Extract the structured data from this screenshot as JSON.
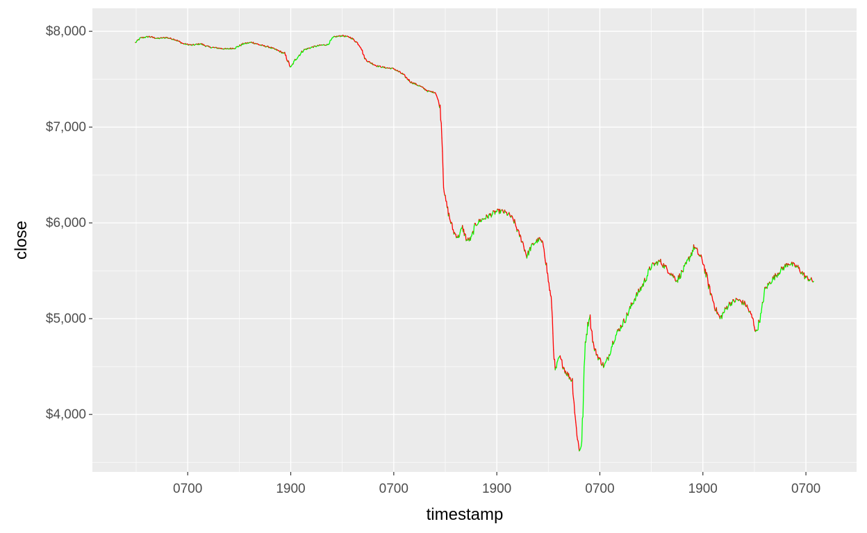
{
  "chart_data": {
    "type": "line",
    "title": "",
    "xlabel": "timestamp",
    "ylabel": "close",
    "x_tick_labels": [
      "0700",
      "1900",
      "0700",
      "1900",
      "0700",
      "1900",
      "0700"
    ],
    "y_tick_labels": [
      "$4,000",
      "$5,000",
      "$6,000",
      "$7,000",
      "$8,000"
    ],
    "y_ticks": [
      4000,
      5000,
      6000,
      7000,
      8000
    ],
    "ylim": [
      3400,
      8240
    ],
    "x_unit": "hours",
    "x_ticks_hours": [
      7,
      19,
      31,
      43,
      55,
      67,
      79
    ],
    "xlim_hours": [
      -4.1,
      84.9
    ],
    "x_range_hours": [
      0.9,
      79.9
    ],
    "grid": true,
    "legend": "none",
    "colors": {
      "up": "#00ff00",
      "down": "#ff0000",
      "panel": "#ebebeb",
      "grid": "#ffffff"
    },
    "series": [
      {
        "values": [
          [
            0.9,
            7880
          ],
          [
            1.5,
            7930
          ],
          [
            2.5,
            7945
          ],
          [
            3.5,
            7925
          ],
          [
            4.5,
            7935
          ],
          [
            5.5,
            7915
          ],
          [
            6.5,
            7870
          ],
          [
            7.5,
            7855
          ],
          [
            8.5,
            7870
          ],
          [
            9.5,
            7835
          ],
          [
            10.5,
            7825
          ],
          [
            11.5,
            7815
          ],
          [
            12.5,
            7825
          ],
          [
            13.5,
            7870
          ],
          [
            14.5,
            7885
          ],
          [
            15.5,
            7855
          ],
          [
            16.5,
            7835
          ],
          [
            17.5,
            7800
          ],
          [
            18.3,
            7765
          ],
          [
            19.0,
            7620
          ],
          [
            19.5,
            7700
          ],
          [
            20.5,
            7805
          ],
          [
            21.5,
            7835
          ],
          [
            22.5,
            7855
          ],
          [
            23.3,
            7860
          ],
          [
            24.0,
            7940
          ],
          [
            25.0,
            7955
          ],
          [
            26.0,
            7935
          ],
          [
            26.7,
            7885
          ],
          [
            27.2,
            7830
          ],
          [
            27.6,
            7720
          ],
          [
            28.0,
            7685
          ],
          [
            29.0,
            7640
          ],
          [
            30.0,
            7620
          ],
          [
            31.0,
            7610
          ],
          [
            32.0,
            7555
          ],
          [
            33.0,
            7470
          ],
          [
            34.0,
            7430
          ],
          [
            35.0,
            7375
          ],
          [
            35.9,
            7360
          ],
          [
            36.4,
            7200
          ],
          [
            36.6,
            6950
          ],
          [
            36.8,
            6400
          ],
          [
            37.0,
            6250
          ],
          [
            37.5,
            6050
          ],
          [
            38.0,
            5900
          ],
          [
            38.5,
            5850
          ],
          [
            39.0,
            5950
          ],
          [
            39.5,
            5820
          ],
          [
            40.0,
            5830
          ],
          [
            40.5,
            5980
          ],
          [
            41.0,
            6020
          ],
          [
            42.0,
            6070
          ],
          [
            43.0,
            6120
          ],
          [
            43.7,
            6120
          ],
          [
            44.5,
            6080
          ],
          [
            45.0,
            6020
          ],
          [
            45.5,
            5900
          ],
          [
            46.0,
            5800
          ],
          [
            46.5,
            5650
          ],
          [
            47.0,
            5750
          ],
          [
            47.5,
            5800
          ],
          [
            48.0,
            5830
          ],
          [
            48.5,
            5750
          ],
          [
            49.0,
            5400
          ],
          [
            49.4,
            5150
          ],
          [
            49.6,
            4700
          ],
          [
            49.8,
            4450
          ],
          [
            50.3,
            4600
          ],
          [
            51.0,
            4450
          ],
          [
            51.8,
            4350
          ],
          [
            52.2,
            3900
          ],
          [
            52.6,
            3620
          ],
          [
            52.9,
            3700
          ],
          [
            53.3,
            4750
          ],
          [
            53.8,
            5050
          ],
          [
            54.3,
            4700
          ],
          [
            54.8,
            4600
          ],
          [
            55.5,
            4500
          ],
          [
            56.0,
            4600
          ],
          [
            56.5,
            4750
          ],
          [
            57.0,
            4850
          ],
          [
            58.0,
            5000
          ],
          [
            59.0,
            5200
          ],
          [
            60.0,
            5350
          ],
          [
            61.0,
            5550
          ],
          [
            62.0,
            5600
          ],
          [
            63.0,
            5500
          ],
          [
            64.0,
            5400
          ],
          [
            65.0,
            5550
          ],
          [
            66.0,
            5750
          ],
          [
            67.0,
            5600
          ],
          [
            67.8,
            5300
          ],
          [
            68.5,
            5100
          ],
          [
            69.0,
            5000
          ],
          [
            70.0,
            5150
          ],
          [
            71.0,
            5200
          ],
          [
            72.0,
            5150
          ],
          [
            72.8,
            5000
          ],
          [
            73.2,
            4850
          ],
          [
            73.8,
            5050
          ],
          [
            74.2,
            5300
          ],
          [
            75.0,
            5400
          ],
          [
            76.0,
            5500
          ],
          [
            77.0,
            5580
          ],
          [
            78.0,
            5540
          ],
          [
            79.0,
            5430
          ],
          [
            79.9,
            5390
          ]
        ]
      }
    ]
  }
}
